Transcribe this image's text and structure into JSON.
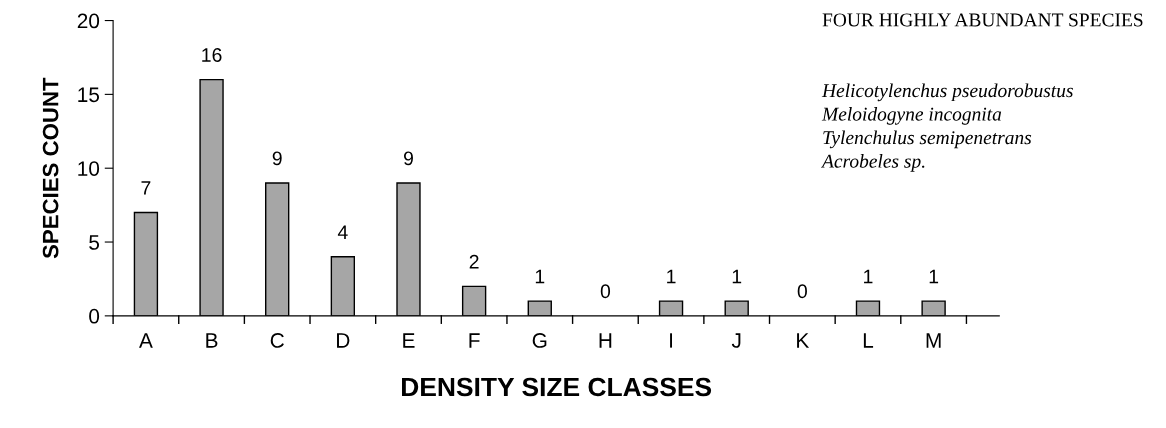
{
  "chart_data": {
    "type": "bar",
    "xlabel": "DENSITY SIZE CLASSES",
    "ylabel": "SPECIES COUNT",
    "categories": [
      "A",
      "B",
      "C",
      "D",
      "E",
      "F",
      "G",
      "H",
      "I",
      "J",
      "K",
      "L",
      "M"
    ],
    "values": [
      7,
      16,
      9,
      4,
      9,
      2,
      1,
      0,
      1,
      1,
      0,
      1,
      1
    ],
    "color": "#a6a6a6",
    "ylim": [
      0,
      20
    ],
    "yticks": [
      0,
      5,
      10,
      15,
      20
    ],
    "grid": false,
    "data_labels": true,
    "annotations": [
      "FOUR HIGHLY ABUNDANT SPECIES",
      "Helicotylenchus pseudorobustus",
      "Meloidogyne incognita",
      "Tylenchulus semipenetrans",
      "Acrobeles sp."
    ]
  }
}
